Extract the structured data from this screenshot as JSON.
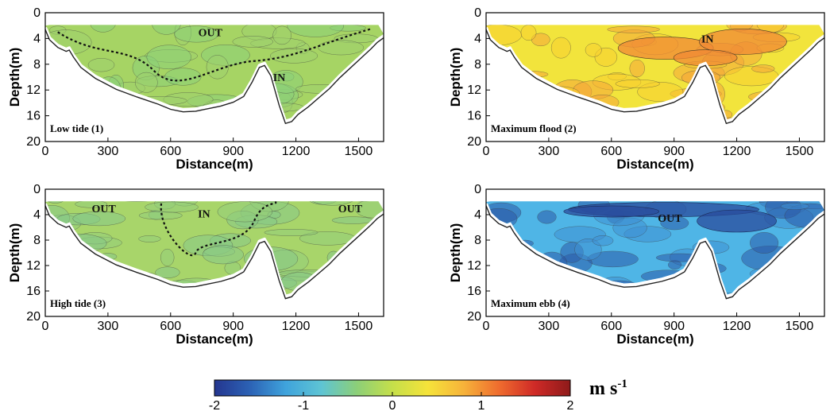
{
  "chart_data": [
    {
      "type": "heatmap",
      "panel_label": "Low tide (1)",
      "xlabel": "Distance(m)",
      "ylabel": "Depth(m)",
      "xlim": [
        0,
        1620
      ],
      "ylim": [
        0,
        20
      ],
      "y_inverted": true,
      "xticks": [
        0,
        300,
        600,
        900,
        1200,
        1500
      ],
      "yticks": [
        0,
        4,
        8,
        12,
        16,
        20
      ],
      "field_colors": [
        "#a6d464",
        "#9fcf6e",
        "#8ccf78"
      ],
      "regions": [
        {
          "label": "OUT",
          "x": 790,
          "y": 3.0
        },
        {
          "label": "IN",
          "x": 1120,
          "y": 10.0
        }
      ]
    },
    {
      "type": "heatmap",
      "panel_label": "Maximum flood (2)",
      "xlabel": "Distance(m)",
      "ylabel": "Depth(m)",
      "xlim": [
        0,
        1620
      ],
      "ylim": [
        0,
        20
      ],
      "y_inverted": true,
      "xticks": [
        0,
        300,
        600,
        900,
        1200,
        1500
      ],
      "yticks": [
        0,
        4,
        8,
        12,
        16,
        20
      ],
      "field_colors": [
        "#f2e43c",
        "#f7cf30",
        "#f4a63a"
      ],
      "regions": [
        {
          "label": "IN",
          "x": 1060,
          "y": 4.0
        }
      ]
    },
    {
      "type": "heatmap",
      "panel_label": "High tide (3)",
      "xlabel": "Distance(m)",
      "ylabel": "Depth(m)",
      "xlim": [
        0,
        1620
      ],
      "ylim": [
        0,
        20
      ],
      "y_inverted": true,
      "xticks": [
        0,
        300,
        600,
        900,
        1200,
        1500
      ],
      "yticks": [
        0,
        4,
        8,
        12,
        16,
        20
      ],
      "field_colors": [
        "#a8d56a",
        "#93cd7a",
        "#86c989"
      ],
      "regions": [
        {
          "label": "OUT",
          "x": 280,
          "y": 3.0
        },
        {
          "label": "IN",
          "x": 760,
          "y": 3.8
        },
        {
          "label": "OUT",
          "x": 1460,
          "y": 3.0
        }
      ]
    },
    {
      "type": "heatmap",
      "panel_label": "Maximum ebb (4)",
      "xlabel": "Distance(m)",
      "ylabel": "Depth(m)",
      "xlim": [
        0,
        1620
      ],
      "ylim": [
        0,
        20
      ],
      "y_inverted": true,
      "xticks": [
        0,
        300,
        600,
        900,
        1200,
        1500
      ],
      "yticks": [
        0,
        4,
        8,
        12,
        16,
        20
      ],
      "field_colors": [
        "#4fb5e6",
        "#3f8fd2",
        "#2c5aa8"
      ],
      "regions": [
        {
          "label": "OUT",
          "x": 880,
          "y": 4.5
        }
      ]
    }
  ],
  "bathymetry": {
    "x": [
      0,
      20,
      60,
      100,
      115,
      135,
      170,
      240,
      340,
      440,
      540,
      600,
      660,
      720,
      780,
      840,
      900,
      950,
      990,
      1025,
      1050,
      1080,
      1120,
      1150,
      1180,
      1210,
      1260,
      1310,
      1360,
      1410,
      1460,
      1510,
      1560,
      1590,
      1620
    ],
    "depth": [
      2.6,
      4.2,
      5.4,
      6.0,
      5.8,
      6.9,
      8.5,
      10.2,
      11.9,
      13.1,
      14.2,
      15.0,
      15.4,
      15.3,
      14.9,
      14.5,
      13.9,
      13.0,
      10.8,
      8.5,
      8.2,
      9.8,
      14.4,
      17.2,
      16.9,
      15.8,
      14.6,
      13.2,
      11.8,
      10.1,
      8.6,
      7.1,
      5.6,
      4.6,
      3.9
    ]
  },
  "colorbar": {
    "min": -2,
    "max": 2,
    "ticks": [
      "-2",
      "-1",
      "0",
      "1",
      "2"
    ],
    "colors": [
      "#24368f",
      "#2c62b5",
      "#3fa3dc",
      "#5ec4d4",
      "#8ccf78",
      "#c5df4a",
      "#f5e33a",
      "#f6b33a",
      "#ef6c2e",
      "#cf2a27",
      "#8e1a1a"
    ],
    "unit": "m s",
    "unit_exp": "-1"
  }
}
